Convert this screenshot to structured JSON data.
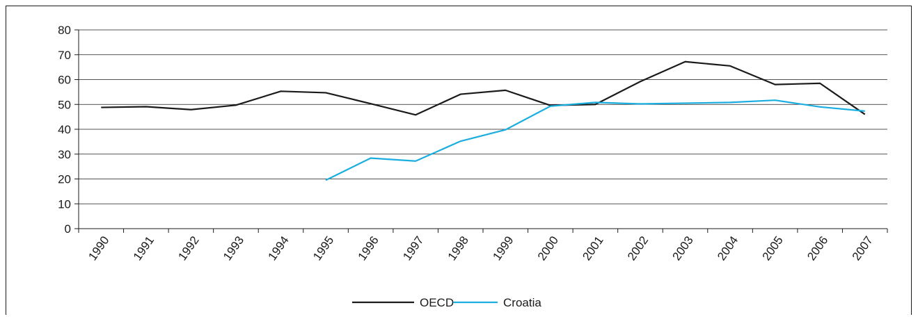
{
  "chart_data": {
    "type": "line",
    "categories": [
      "1990",
      "1991",
      "1992",
      "1993",
      "1994",
      "1995",
      "1996",
      "1997",
      "1998",
      "1999",
      "2000",
      "2001",
      "2002",
      "2003",
      "2004",
      "2005",
      "2006",
      "2007"
    ],
    "series": [
      {
        "name": "OECD",
        "color": "#1a1a1a",
        "values": [
          48.8,
          49.1,
          47.9,
          49.7,
          55.3,
          54.7,
          50.3,
          45.8,
          54.1,
          55.7,
          49.6,
          50.0,
          59.2,
          67.2,
          65.5,
          58.0,
          58.5,
          46.0
        ]
      },
      {
        "name": "Croatia",
        "color": "#1aaee0",
        "values": [
          null,
          null,
          null,
          null,
          null,
          19.5,
          28.4,
          27.2,
          35.2,
          39.8,
          49.3,
          50.8,
          50.2,
          50.5,
          50.8,
          51.7,
          49.0,
          47.3
        ]
      }
    ],
    "yticks": [
      "0",
      "10",
      "20",
      "30",
      "40",
      "50",
      "60",
      "70",
      "80"
    ],
    "ylim": [
      0,
      80
    ],
    "grid": true,
    "legend_position": "bottom-center"
  }
}
